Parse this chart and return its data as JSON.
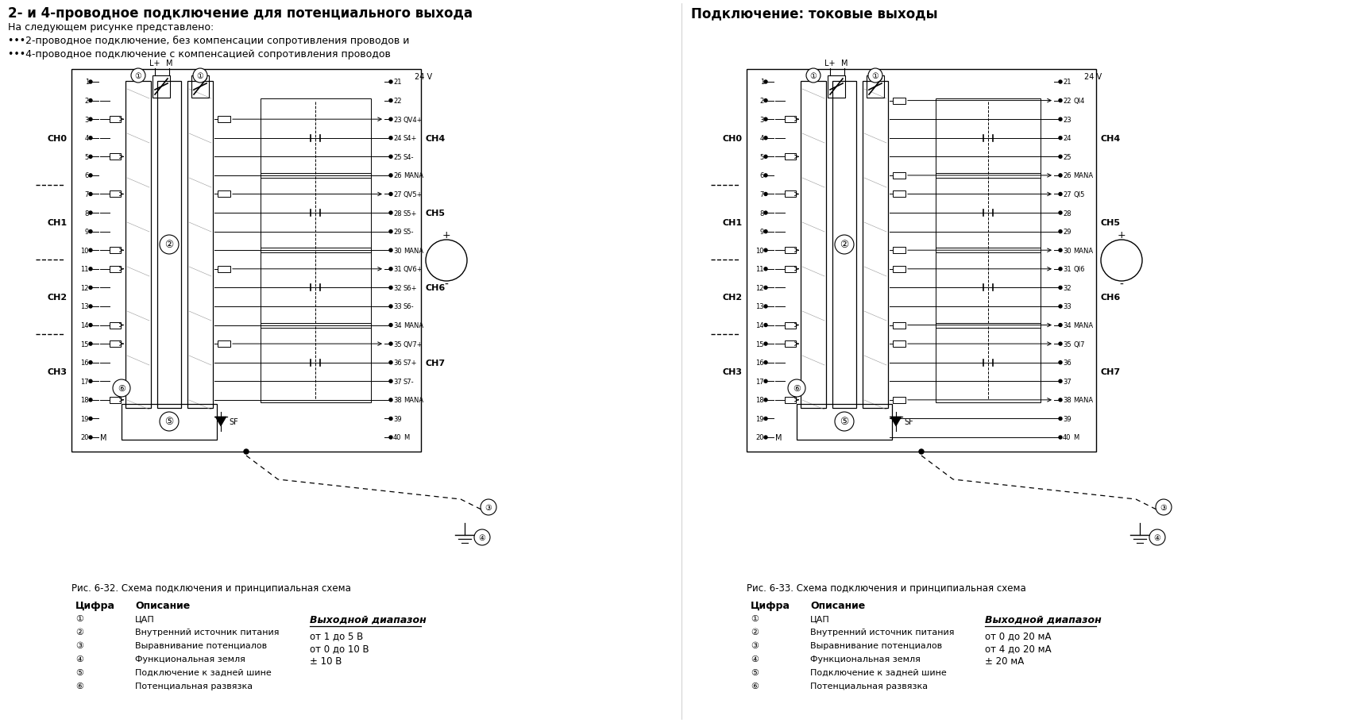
{
  "title_left": "2- и 4-проводное подключение для потенциального выхода",
  "title_right": "Подключение: токовые выходы",
  "subtitle_left": "На следующем рисунке представлено:",
  "bullet1": "•••2-проводное подключение, без компенсации сопротивления проводов и",
  "bullet2": "•••4-проводное подключение с компенсацией сопротивления проводов",
  "fig_caption_left": "Рис. 6-32. Схема подключения и принципиальная схема",
  "fig_caption_right": "Рис. 6-33. Схема подключения и принципиальная схема",
  "legend_header_num": "Цифра",
  "legend_header_desc": "Описание",
  "legend_items": [
    [
      "①",
      "ЦАП"
    ],
    [
      "②",
      "Внутренний источник питания"
    ],
    [
      "③",
      "Выравнивание потенциалов"
    ],
    [
      "④",
      "Функциональная земля"
    ],
    [
      "⑤",
      "Подключение к задней шине"
    ],
    [
      "⑥",
      "Потенциальная развязка"
    ]
  ],
  "legend_items_right": [
    [
      "①",
      "ЦАП"
    ],
    [
      "②",
      "Внутренний источник питания"
    ],
    [
      "③",
      "Выравнивание потенциалов"
    ],
    [
      "④",
      "Функциональная земля"
    ],
    [
      "⑤",
      "Подключение к задней шине"
    ],
    [
      "⑥",
      "Потенциальная развязка"
    ]
  ],
  "output_range_header": "Выходной диапазон",
  "output_range_items_left": [
    "от 1 до 5 В",
    "от 0 до 10 В",
    "± 10 В"
  ],
  "output_range_items_right": [
    "от 0 до 20 мА",
    "от 4 до 20 мА",
    "± 20 мА"
  ],
  "bg_color": "#ffffff"
}
